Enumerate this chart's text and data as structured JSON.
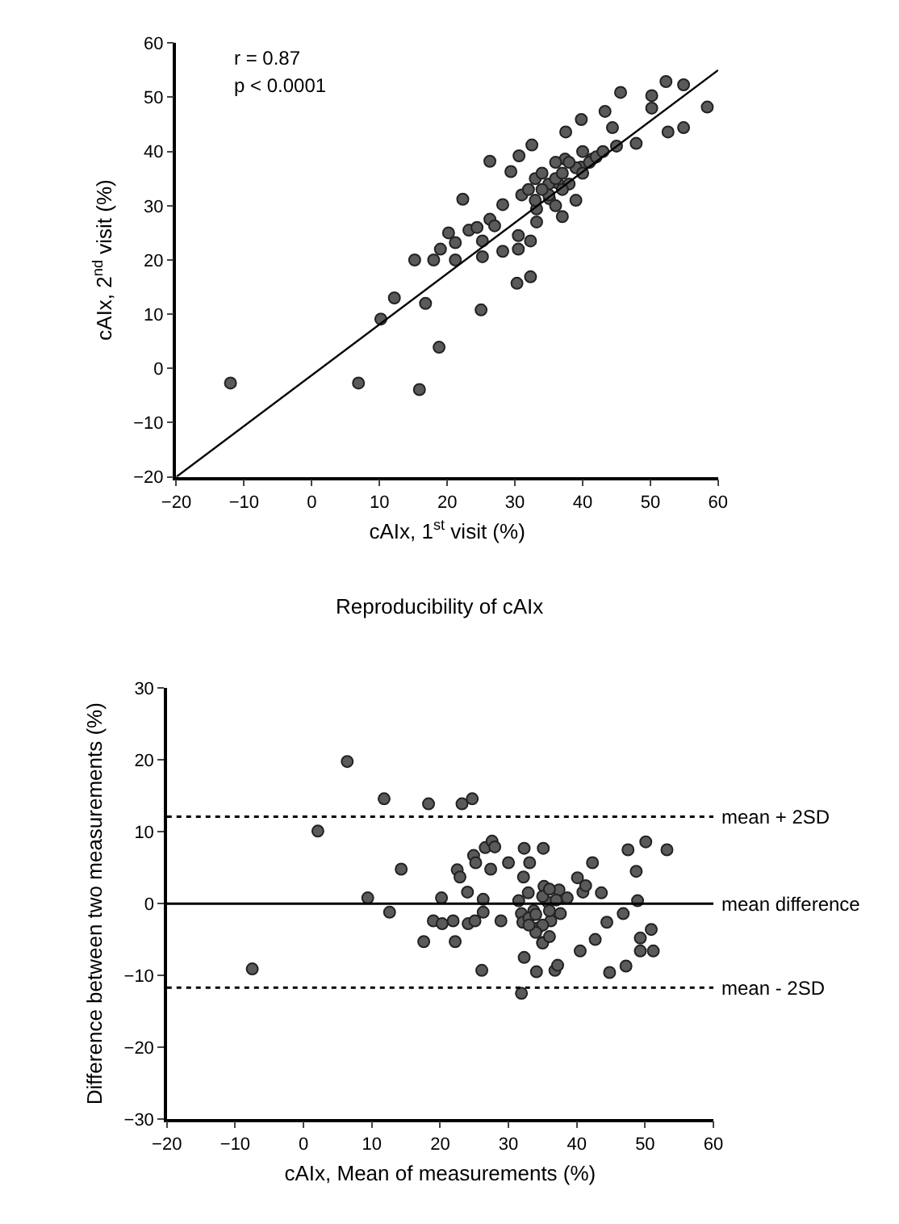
{
  "chart_data": [
    {
      "type": "scatter",
      "xlabel": "cAIx, 1$^{st}$ visit (%)",
      "ylabel": "cAIx, 2$^{nd}$ visit (%)",
      "annotations": [
        "r = 0.87",
        "p < 0.0001"
      ],
      "xlim": [
        -20,
        60
      ],
      "ylim": [
        -20,
        60
      ],
      "xticks": [
        -20,
        -10,
        0,
        10,
        20,
        30,
        40,
        50,
        60
      ],
      "yticks": [
        -20,
        -10,
        0,
        10,
        20,
        30,
        40,
        50,
        60
      ],
      "marker": "circle",
      "series": [
        {
          "color": "#5a5a5a",
          "x": [
            -12,
            6.9,
            15.9,
            18.8,
            10.2,
            12.2,
            16.8,
            15.2,
            18,
            19,
            20.2,
            21.2,
            21.2,
            22.3,
            23.2,
            24.4,
            25.2,
            25.2,
            25,
            26.3,
            26.3,
            27,
            28.2,
            28.2,
            29.4,
            30.5,
            30.5,
            30.3,
            32.3,
            32.3,
            30.6,
            32.5,
            33.2,
            33.2,
            37.5,
            58.4,
            54.9,
            52.3,
            50.2,
            50.2,
            52.6,
            54.9,
            45.6,
            43.3,
            44.4,
            39.8,
            47.9,
            41.4,
            39.8,
            37.4,
            36.3,
            35.1,
            31,
            32,
            33,
            34,
            35,
            36,
            37,
            38,
            39,
            35,
            33,
            36,
            34,
            37,
            38,
            40,
            41,
            42,
            39,
            36,
            37,
            40,
            43,
            45
          ],
          "values": [
            -2.7,
            -2.7,
            -3.9,
            3.9,
            9.1,
            13,
            12,
            20,
            20,
            22,
            25,
            20,
            23.2,
            31.2,
            25.5,
            26,
            23.5,
            20.6,
            10.8,
            38.2,
            27.5,
            26.3,
            30.2,
            21.6,
            36.3,
            24.5,
            22,
            15.7,
            16.9,
            23.5,
            39.2,
            41.2,
            29.4,
            27,
            43.6,
            48.2,
            52.3,
            52.9,
            50.3,
            48,
            43.6,
            44.4,
            50.9,
            47.4,
            44.4,
            45.9,
            41.5,
            38.6,
            37.1,
            38.6,
            34.2,
            31.3,
            32,
            33,
            35,
            36,
            34,
            35,
            36,
            34,
            37,
            32,
            31,
            38,
            33,
            33,
            38,
            36,
            38,
            39,
            31,
            30,
            28,
            40,
            40,
            41
          ]
        },
        {
          "type": "line",
          "color": "#000000",
          "line_style": "solid",
          "marker": "none",
          "x": [
            -20,
            60
          ],
          "values": [
            -20,
            55
          ]
        }
      ]
    },
    {
      "type": "scatter",
      "title": "Reproducibility of cAIx",
      "xlabel": "cAIx, Mean of measurements (%)",
      "ylabel": "Difference between two measurements (%)",
      "xlim": [
        -20,
        60
      ],
      "ylim": [
        -30,
        30
      ],
      "xticks": [
        -20,
        -10,
        0,
        10,
        20,
        30,
        40,
        50,
        60
      ],
      "yticks": [
        -30,
        -20,
        -10,
        0,
        10,
        20,
        30
      ],
      "marker": "circle",
      "ref_lines": [
        {
          "axis": "y",
          "value": 12.1,
          "label": "mean + 2SD",
          "line_style": "dotted",
          "color": "#000000"
        },
        {
          "axis": "y",
          "value": 0,
          "label": "mean difference",
          "line_style": "solid",
          "color": "#000000"
        },
        {
          "axis": "y",
          "value": -11.7,
          "label": "mean - 2SD",
          "line_style": "dotted",
          "color": "#000000"
        }
      ],
      "series": [
        {
          "color": "#5a5a5a",
          "x": [
            -7.5,
            2.1,
            6.4,
            9.4,
            11.8,
            12.6,
            14.3,
            17.6,
            18.3,
            20.2,
            19,
            20.3,
            21.9,
            22.2,
            22.5,
            22.9,
            23.2,
            24.7,
            24,
            24.1,
            25.1,
            24.9,
            25.2,
            26.1,
            26.3,
            26.3,
            26.6,
            27.6,
            27.4,
            28,
            28.9,
            30,
            31.5,
            31.9,
            32.1,
            32.3,
            32.2,
            32.9,
            33.1,
            32.3,
            31.9,
            33.7,
            34.3,
            34.1,
            35.1,
            35.2,
            35,
            35.8,
            36.2,
            36.8,
            37.2,
            37.4,
            37.6,
            38.6,
            40.1,
            40.5,
            40.9,
            41.3,
            42.3,
            42.7,
            43.6,
            44.4,
            44.8,
            46.8,
            47.2,
            47.5,
            48.7,
            48.9,
            49.3,
            50.1,
            49.3,
            50.9,
            51.2,
            53.2,
            33,
            34,
            35,
            34,
            36,
            35,
            36,
            37,
            33,
            35,
            36
          ],
          "values": [
            -9.1,
            10.1,
            19.8,
            0.8,
            14.6,
            -1.2,
            4.8,
            -5.3,
            13.9,
            0.8,
            -2.4,
            -2.8,
            -2.4,
            -5.3,
            4.7,
            3.7,
            13.9,
            14.6,
            1.6,
            -2.8,
            -2.4,
            6.7,
            5.7,
            -9.3,
            0.6,
            -1.2,
            7.8,
            8.7,
            4.8,
            7.9,
            -2.4,
            5.7,
            0.4,
            -1.4,
            -2.6,
            7.7,
            3.7,
            1.5,
            5.7,
            -7.5,
            -12.5,
            -1,
            -3.4,
            -9.5,
            7.7,
            2.4,
            -5.4,
            0.2,
            -2.4,
            -9.3,
            -8.6,
            1.9,
            -1.4,
            0.8,
            3.6,
            -6.6,
            1.6,
            2.5,
            5.7,
            -5,
            1.5,
            -2.6,
            -9.6,
            -1.4,
            -8.7,
            7.5,
            4.5,
            0.4,
            -4.8,
            8.6,
            -6.6,
            -3.6,
            -6.6,
            7.5,
            -2,
            -1.5,
            -3,
            -4,
            -1,
            1,
            2,
            0.5,
            -3,
            -5.5,
            -4.6
          ]
        }
      ]
    }
  ]
}
